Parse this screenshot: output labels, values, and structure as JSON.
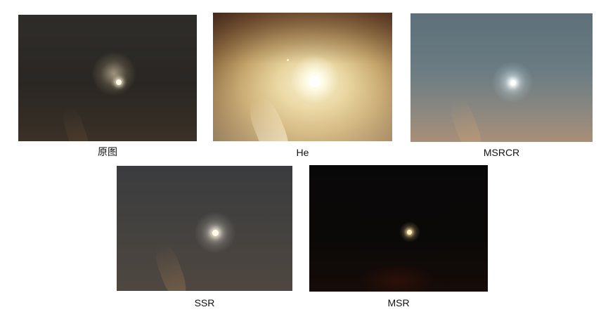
{
  "panels": [
    {
      "id": "original",
      "caption": "原图"
    },
    {
      "id": "he",
      "caption": "He"
    },
    {
      "id": "msrcr",
      "caption": "MSRCR"
    },
    {
      "id": "ssr",
      "caption": "SSR"
    },
    {
      "id": "msr",
      "caption": "MSR"
    }
  ],
  "colors": {
    "background": "#ffffff",
    "caption_text": "#111111"
  }
}
